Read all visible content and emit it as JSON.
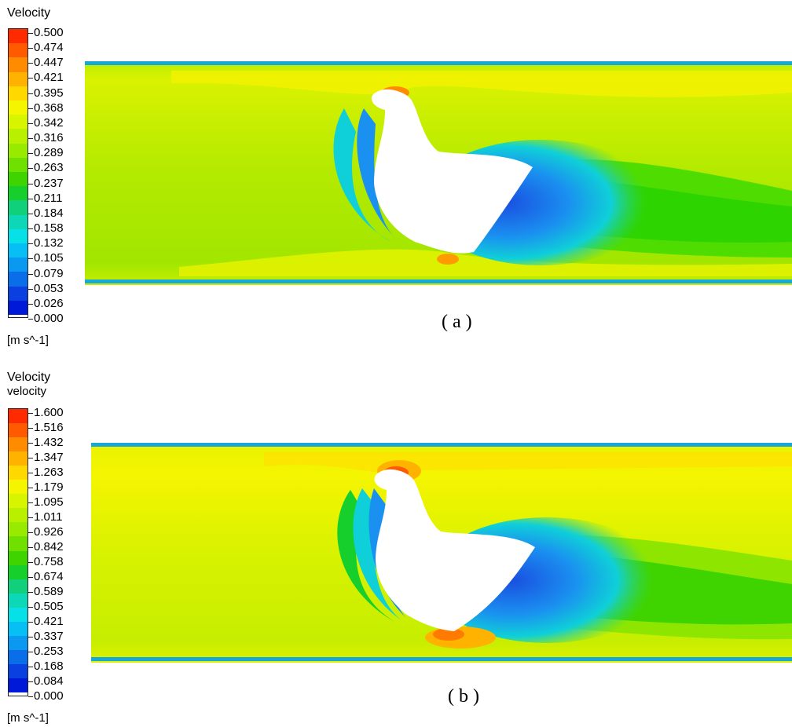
{
  "panels": [
    {
      "id": "a",
      "legend": {
        "title_lines": [
          "Velocity"
        ],
        "ticks": [
          "0.500",
          "0.474",
          "0.447",
          "0.421",
          "0.395",
          "0.368",
          "0.342",
          "0.316",
          "0.289",
          "0.263",
          "0.237",
          "0.211",
          "0.184",
          "0.158",
          "0.132",
          "0.105",
          "0.079",
          "0.053",
          "0.026",
          "0.000"
        ],
        "units": "[m s^-1]"
      },
      "caption": "( a )"
    },
    {
      "id": "b",
      "legend": {
        "title_lines": [
          "Velocity",
          "velocity"
        ],
        "ticks": [
          "1.600",
          "1.516",
          "1.432",
          "1.347",
          "1.263",
          "1.179",
          "1.095",
          "1.011",
          "0.926",
          "0.842",
          "0.758",
          "0.674",
          "0.589",
          "0.505",
          "0.421",
          "0.337",
          "0.253",
          "0.168",
          "0.084",
          "0.000"
        ],
        "units": "[m s^-1]"
      },
      "caption": "( b )"
    }
  ],
  "colormap": [
    "#ff2a00",
    "#ff5a00",
    "#ff8c00",
    "#ffb300",
    "#ffd800",
    "#f5f500",
    "#d8f500",
    "#b8f000",
    "#98ea00",
    "#6fe000",
    "#3fd400",
    "#17cf2c",
    "#10d07c",
    "#0cd8b8",
    "#08e0e8",
    "#08bff5",
    "#0a98f0",
    "#0a6ee8",
    "#0a40e0",
    "#0018d8"
  ],
  "colors": {
    "wall": "#17a8d8",
    "body": "#ffffff",
    "wake_dark": "#1a4fe0",
    "wake_mid": "#1a90f0",
    "wake_light": "#0fd0d8"
  }
}
